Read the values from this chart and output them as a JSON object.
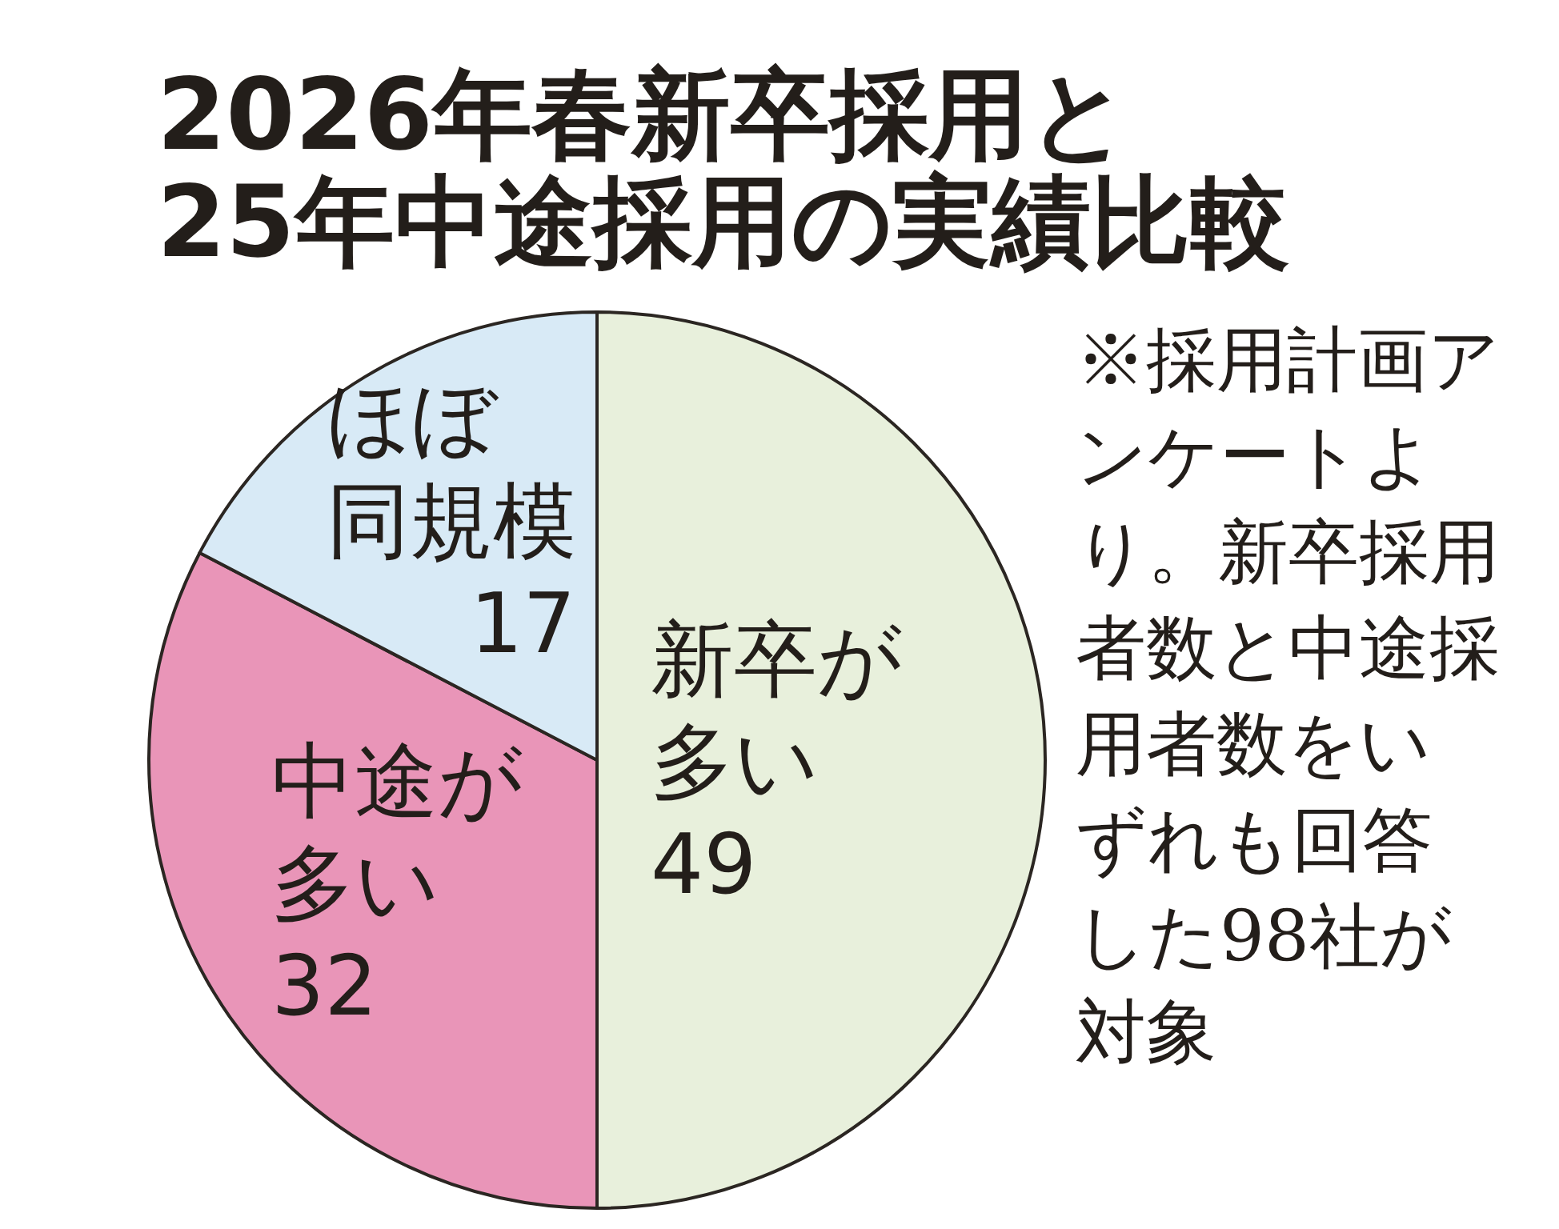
{
  "chart_data": {
    "type": "pie",
    "title": "2026年春新卒採用と25年中途採用の実績比較",
    "categories": [
      "新卒が多い",
      "中途が多い",
      "ほぼ同規模"
    ],
    "values": [
      49,
      32,
      17
    ],
    "colors": [
      "#e8f0dc",
      "#e995b8",
      "#d8eaf6"
    ],
    "data_labels": true,
    "annotations": [
      "※採用計画アンケートより。新卒採用者数と中途採用者数をいずれも回答した98社が対象"
    ]
  }
}
